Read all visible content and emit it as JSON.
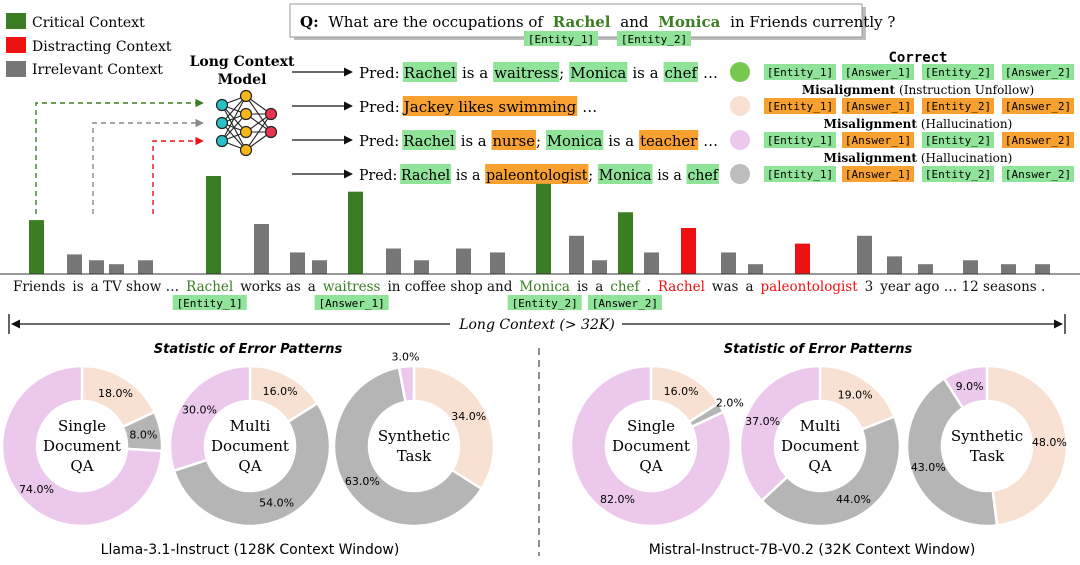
{
  "legend": [
    {
      "label": "Critical Context",
      "color": "#3a7d22"
    },
    {
      "label": "Distracting Context",
      "color": "#ee1111"
    },
    {
      "label": "Irrelevant Context",
      "color": "#777777"
    }
  ],
  "question": {
    "prefix": "Q:",
    "p1": "What are the occupations of",
    "e1": "Rachel",
    "and": "and",
    "e2": "Monica",
    "p2": "in Friends currently ?",
    "tag1": "[Entity_1]",
    "tag2": "[Entity_2]"
  },
  "model": {
    "line1": "Long Context",
    "line2": "Model"
  },
  "preds": [
    {
      "label": "Pred:",
      "parts": [
        {
          "t": "Rachel",
          "h": "g"
        },
        {
          "t": "is a",
          "h": ""
        },
        {
          "t": "waitress",
          "h": "g"
        },
        {
          "t": ";",
          "h": ""
        },
        {
          "t": "Monica",
          "h": "g"
        },
        {
          "t": "is a",
          "h": ""
        },
        {
          "t": "chef",
          "h": "g"
        },
        {
          "t": "…",
          "h": ""
        }
      ]
    },
    {
      "label": "Pred:",
      "parts": [
        {
          "t": "Jackey likes swimming",
          "h": "o"
        },
        {
          "t": "…",
          "h": ""
        }
      ]
    },
    {
      "label": "Pred:",
      "parts": [
        {
          "t": "Rachel",
          "h": "g"
        },
        {
          "t": "is a",
          "h": ""
        },
        {
          "t": "nurse",
          "h": "o"
        },
        {
          "t": ";",
          "h": ""
        },
        {
          "t": "Monica",
          "h": "g"
        },
        {
          "t": "is a",
          "h": ""
        },
        {
          "t": "teacher",
          "h": "o"
        },
        {
          "t": "…",
          "h": ""
        }
      ]
    },
    {
      "label": "Pred:",
      "parts": [
        {
          "t": "Rachel",
          "h": "g"
        },
        {
          "t": "is a",
          "h": ""
        },
        {
          "t": "paleontologist",
          "h": "o"
        },
        {
          "t": ";",
          "h": ""
        },
        {
          "t": "Monica",
          "h": "g"
        },
        {
          "t": "is a",
          "h": ""
        },
        {
          "t": "chef",
          "h": "g"
        }
      ]
    }
  ],
  "correct_title": "Correct",
  "status_rows": [
    {
      "circle": "#78c850",
      "title": "",
      "sub": "",
      "tags": [
        {
          "t": "[Entity_1]",
          "h": "g"
        },
        {
          "t": "[Answer_1]",
          "h": "g"
        },
        {
          "t": "[Entity_2]",
          "h": "g"
        },
        {
          "t": "[Answer_2]",
          "h": "g"
        }
      ]
    },
    {
      "circle": "#f8e1d2",
      "title": "Misalignment",
      "sub": "(Instruction Unfollow)",
      "tags": [
        {
          "t": "[Entity_1]",
          "h": "o"
        },
        {
          "t": "[Answer_1]",
          "h": "o"
        },
        {
          "t": "[Entity_2]",
          "h": "o"
        },
        {
          "t": "[Answer_2]",
          "h": "o"
        }
      ]
    },
    {
      "circle": "#ecc9ec",
      "title": "Misalignment",
      "sub": "(Hallucination)",
      "tags": [
        {
          "t": "[Entity_1]",
          "h": "g"
        },
        {
          "t": "[Answer_1]",
          "h": "o"
        },
        {
          "t": "[Entity_2]",
          "h": "g"
        },
        {
          "t": "[Answer_2]",
          "h": "o"
        }
      ]
    },
    {
      "circle": "#bdbdbd",
      "title": "Misalignment",
      "sub": "(Hallucination)",
      "tags": [
        {
          "t": "[Entity_1]",
          "h": "g"
        },
        {
          "t": "[Answer_1]",
          "h": "o"
        },
        {
          "t": "[Entity_2]",
          "h": "g"
        },
        {
          "t": "[Answer_2]",
          "h": "g"
        }
      ]
    }
  ],
  "context_sentence": [
    {
      "t": "Friends",
      "c": ""
    },
    {
      "t": "is",
      "c": ""
    },
    {
      "t": "a TV show …",
      "c": ""
    },
    {
      "t": "Rachel",
      "c": "g",
      "tag": "[Entity_1]"
    },
    {
      "t": "works as",
      "c": ""
    },
    {
      "t": "a",
      "c": ""
    },
    {
      "t": "waitress",
      "c": "g",
      "tag": "[Answer_1]"
    },
    {
      "t": "in coffee shop and",
      "c": ""
    },
    {
      "t": "Monica",
      "c": "g",
      "tag": "[Entity_2]"
    },
    {
      "t": "is",
      "c": ""
    },
    {
      "t": "a",
      "c": ""
    },
    {
      "t": "chef",
      "c": "g",
      "tag": "[Answer_2]"
    },
    {
      "t": ".",
      "c": ""
    },
    {
      "t": "Rachel",
      "c": "r"
    },
    {
      "t": "was",
      "c": ""
    },
    {
      "t": "a",
      "c": ""
    },
    {
      "t": "paleontologist",
      "c": "r"
    },
    {
      "t": "3",
      "c": ""
    },
    {
      "t": "year ago … 12 seasons .",
      "c": ""
    }
  ],
  "context_bars": [
    {
      "v": 0.55,
      "k": "g"
    },
    {
      "v": 0.2,
      "k": "i"
    },
    {
      "v": 0.14,
      "k": "i"
    },
    {
      "v": 0.1,
      "k": "i"
    },
    {
      "v": 0.14,
      "k": "i"
    },
    {
      "v": 1.0,
      "k": "g"
    },
    {
      "v": 0.51,
      "k": "i"
    },
    {
      "v": 0.22,
      "k": "i"
    },
    {
      "v": 0.14,
      "k": "i"
    },
    {
      "v": 0.84,
      "k": "g"
    },
    {
      "v": 0.26,
      "k": "i"
    },
    {
      "v": 0.14,
      "k": "i"
    },
    {
      "v": 0.26,
      "k": "i"
    },
    {
      "v": 0.22,
      "k": "i"
    },
    {
      "v": 0.92,
      "k": "g"
    },
    {
      "v": 0.39,
      "k": "i"
    },
    {
      "v": 0.14,
      "k": "i"
    },
    {
      "v": 0.63,
      "k": "g"
    },
    {
      "v": 0.22,
      "k": "i"
    },
    {
      "v": 0.47,
      "k": "r"
    },
    {
      "v": 0.22,
      "k": "i"
    },
    {
      "v": 0.1,
      "k": "i"
    },
    {
      "v": 0.31,
      "k": "r"
    },
    {
      "v": 0.39,
      "k": "i"
    },
    {
      "v": 0.18,
      "k": "i"
    },
    {
      "v": 0.1,
      "k": "i"
    },
    {
      "v": 0.14,
      "k": "i"
    },
    {
      "v": 0.1,
      "k": "i"
    },
    {
      "v": 0.1,
      "k": "i"
    }
  ],
  "long_context_label": "Long Context (> 32K)",
  "error_title_left": "Statistic of Error Patterns",
  "error_title_right": "Statistic of Error Patterns",
  "model_left": "Llama-3.1-Instruct (128K Context Window)",
  "model_right": "Mistral-Instruct-7B-V0.2 (32K Context Window)",
  "colors": {
    "pink": "#ecc9ec",
    "peach": "#f8e1d2",
    "gray": "#b5b5b5",
    "green_hl": "#90e49a",
    "orange_hl": "#f8a131"
  },
  "chart_data": [
    {
      "type": "pie",
      "title": "Single Document QA",
      "model": "Llama-3.1-Instruct",
      "slices": [
        {
          "label": "18.0%",
          "value": 18.0,
          "color": "#f8e1d2"
        },
        {
          "label": "8.0%",
          "value": 8.0,
          "color": "#b5b5b5"
        },
        {
          "label": "74.0%",
          "value": 74.0,
          "color": "#ecc9ec"
        }
      ]
    },
    {
      "type": "pie",
      "title": "Multi Document QA",
      "model": "Llama-3.1-Instruct",
      "slices": [
        {
          "label": "16.0%",
          "value": 16.0,
          "color": "#f8e1d2"
        },
        {
          "label": "54.0%",
          "value": 54.0,
          "color": "#b5b5b5"
        },
        {
          "label": "30.0%",
          "value": 30.0,
          "color": "#ecc9ec"
        }
      ]
    },
    {
      "type": "pie",
      "title": "Synthetic Task",
      "model": "Llama-3.1-Instruct",
      "slices": [
        {
          "label": "34.0%",
          "value": 34.0,
          "color": "#f8e1d2"
        },
        {
          "label": "63.0%",
          "value": 63.0,
          "color": "#b5b5b5"
        },
        {
          "label": "3.0%",
          "value": 3.0,
          "color": "#ecc9ec"
        }
      ]
    },
    {
      "type": "pie",
      "title": "Single Document QA",
      "model": "Mistral-Instruct-7B-V0.2",
      "slices": [
        {
          "label": "16.0%",
          "value": 16.0,
          "color": "#f8e1d2"
        },
        {
          "label": "2.0%",
          "value": 2.0,
          "color": "#b5b5b5"
        },
        {
          "label": "82.0%",
          "value": 82.0,
          "color": "#ecc9ec"
        }
      ]
    },
    {
      "type": "pie",
      "title": "Multi Document QA",
      "model": "Mistral-Instruct-7B-V0.2",
      "slices": [
        {
          "label": "19.0%",
          "value": 19.0,
          "color": "#f8e1d2"
        },
        {
          "label": "44.0%",
          "value": 44.0,
          "color": "#b5b5b5"
        },
        {
          "label": "37.0%",
          "value": 37.0,
          "color": "#ecc9ec"
        }
      ]
    },
    {
      "type": "pie",
      "title": "Synthetic Task",
      "model": "Mistral-Instruct-7B-V0.2",
      "slices": [
        {
          "label": "48.0%",
          "value": 48.0,
          "color": "#f8e1d2"
        },
        {
          "label": "43.0%",
          "value": 43.0,
          "color": "#b5b5b5"
        },
        {
          "label": "9.0%",
          "value": 9.0,
          "color": "#ecc9ec"
        }
      ]
    }
  ]
}
